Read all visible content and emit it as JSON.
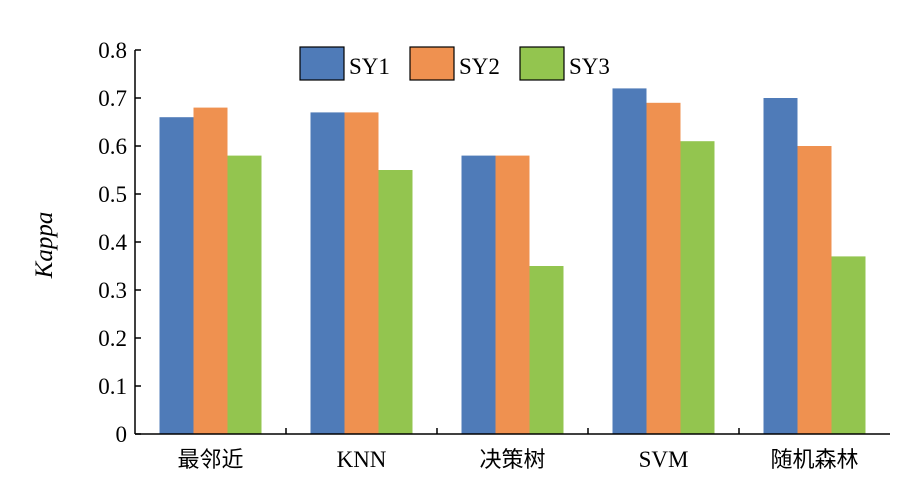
{
  "chart_data": {
    "type": "bar",
    "categories": [
      "最邻近",
      "KNN",
      "决策树",
      "SVM",
      "随机森林"
    ],
    "series": [
      {
        "name": "SY1",
        "color": "#4f7bb8",
        "values": [
          0.66,
          0.67,
          0.58,
          0.72,
          0.7
        ]
      },
      {
        "name": "SY2",
        "color": "#ef9150",
        "values": [
          0.68,
          0.67,
          0.58,
          0.69,
          0.6
        ]
      },
      {
        "name": "SY3",
        "color": "#93c54f",
        "values": [
          0.58,
          0.55,
          0.35,
          0.61,
          0.37
        ]
      }
    ],
    "ylabel": "Kappa",
    "xlabel": "",
    "ylim": [
      0,
      0.8
    ],
    "yticks": [
      "0",
      "0.1",
      "0.2",
      "0.3",
      "0.4",
      "0.5",
      "0.6",
      "0.7",
      "0.8"
    ],
    "grid": false,
    "legend_position": "top"
  }
}
